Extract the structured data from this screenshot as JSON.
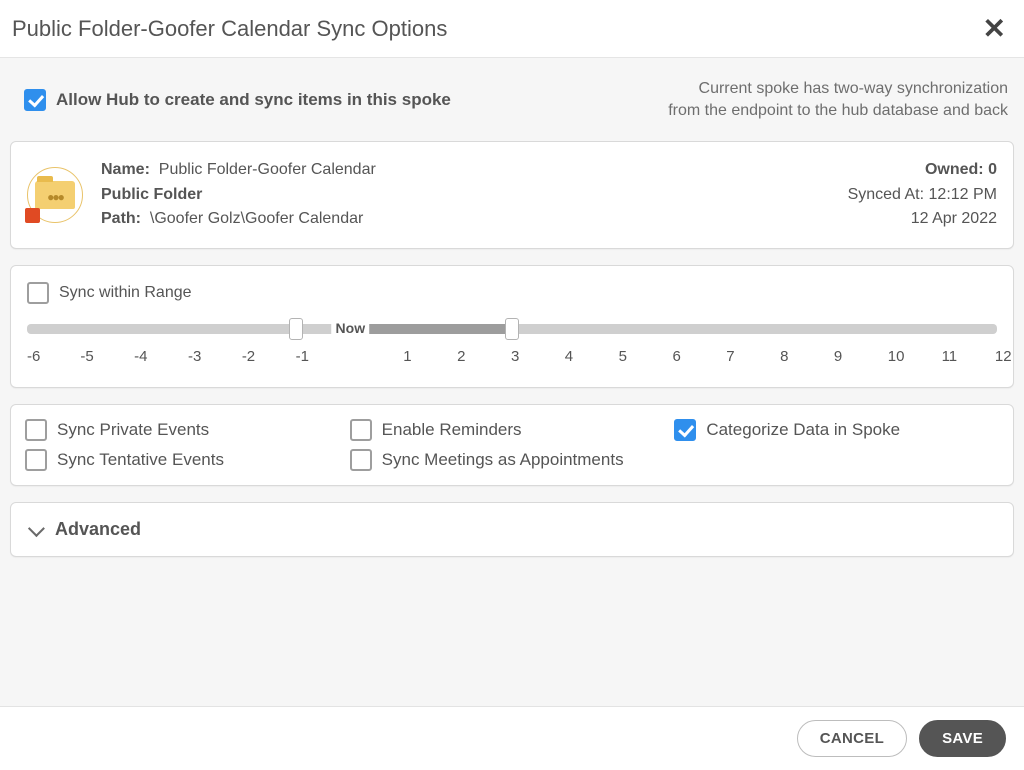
{
  "header": {
    "title": "Public Folder-Goofer Calendar Sync Options"
  },
  "top": {
    "allow_label": "Allow Hub to create and sync items in this spoke",
    "allow_checked": true,
    "desc_line1": "Current spoke has two-way synchronization",
    "desc_line2": "from the endpoint to the hub database and back"
  },
  "info": {
    "name_label": "Name:",
    "name_value": "Public Folder-Goofer Calendar",
    "type_value": "Public Folder",
    "path_label": "Path:",
    "path_value": "\\Goofer Golz\\Goofer Calendar",
    "owned_label": "Owned:",
    "owned_value": "0",
    "synced_label": "Synced At:",
    "synced_time": "12:12 PM",
    "synced_date": "12 Apr 2022"
  },
  "range": {
    "label": "Sync within Range",
    "checked": false,
    "now_label": "Now",
    "min": -6,
    "max": 12,
    "handle_left_value": -1,
    "handle_right_value": 3,
    "ticks": [
      "-6",
      "-5",
      "-4",
      "-3",
      "-2",
      "-1",
      "",
      "1",
      "2",
      "3",
      "4",
      "5",
      "6",
      "7",
      "8",
      "9",
      "10",
      "11",
      "12"
    ],
    "track_color": "#cfcfcf",
    "fill_color": "#9d9d9d"
  },
  "options": [
    {
      "label": "Sync Private Events",
      "checked": false
    },
    {
      "label": "Enable Reminders",
      "checked": false
    },
    {
      "label": "Categorize Data in Spoke",
      "checked": true
    },
    {
      "label": "Sync Tentative Events",
      "checked": false
    },
    {
      "label": "Sync Meetings as Appointments",
      "checked": false
    }
  ],
  "advanced": {
    "label": "Advanced"
  },
  "footer": {
    "cancel": "CANCEL",
    "save": "SAVE"
  },
  "colors": {
    "accent": "#2f8fed",
    "page_bg": "#f6f6f6",
    "card_bg": "#ffffff",
    "text": "#555555",
    "folder_fill": "#f4cf71",
    "folder_tab": "#e9bb4d",
    "badge": "#e04a23"
  }
}
